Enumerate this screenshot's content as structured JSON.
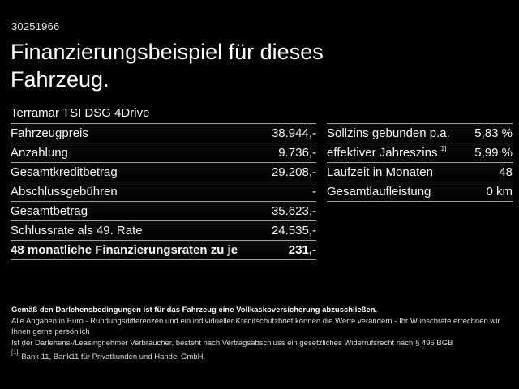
{
  "header": {
    "vehicle_id": "30251966",
    "title": "Finanzierungsbeispiel für dieses Fahrzeug.",
    "model": "Terramar TSI DSG 4Drive"
  },
  "financing_table": {
    "rows": [
      {
        "label": "Fahrzeugpreis",
        "value": "38.944,-"
      },
      {
        "label": "Anzahlung",
        "value": "9.736,-"
      },
      {
        "label": "Gesamtkreditbetrag",
        "value": "29.208,-"
      },
      {
        "label": "Abschlussgebühren",
        "value": "-"
      },
      {
        "label": "Gesamtbetrag",
        "value": "35.623,-"
      },
      {
        "label": "Schlussrate als 49. Rate",
        "value": "24.535,-"
      },
      {
        "label": "48 monatliche Finanzierungsraten zu je",
        "value": "231,-"
      }
    ]
  },
  "conditions_table": {
    "rows": [
      {
        "label": "Sollzins gebunden p.a.",
        "value": "5,83 %"
      },
      {
        "label": "effektiver Jahreszins",
        "label_sup": "[1]",
        "value": "5,99 %"
      },
      {
        "label": "Laufzeit in Monaten",
        "value": "48"
      },
      {
        "label": "Gesamtlaufleistung",
        "value": "0 km"
      }
    ]
  },
  "footer": {
    "insurance_note": "Gemäß den Darlehensbedingungen ist für das Fahrzeug eine Vollkaskoversicherung abzuschließen.",
    "notes": [
      "Alle Angaben in Euro - Rundungsdifferenzen und ein individueller Kreditschutzbrief können die Werte verändern - Ihr Wunschrate errechnen wir Ihnen gerne persönlich",
      "Ist der Darlehens-/Leasingnehmer Verbraucher, besteht nach Vertragsabschluss ein gesetzliches Widerrufsrecht nach § 495 BGB"
    ],
    "footnote_marker": "[1]",
    "footnote_text": "Bank 11, Bank11 für Privatkunden und Handel GmbH."
  },
  "colors": {
    "background": "#000000",
    "text": "#f5f5f5",
    "separator": "#9e9e9e"
  }
}
